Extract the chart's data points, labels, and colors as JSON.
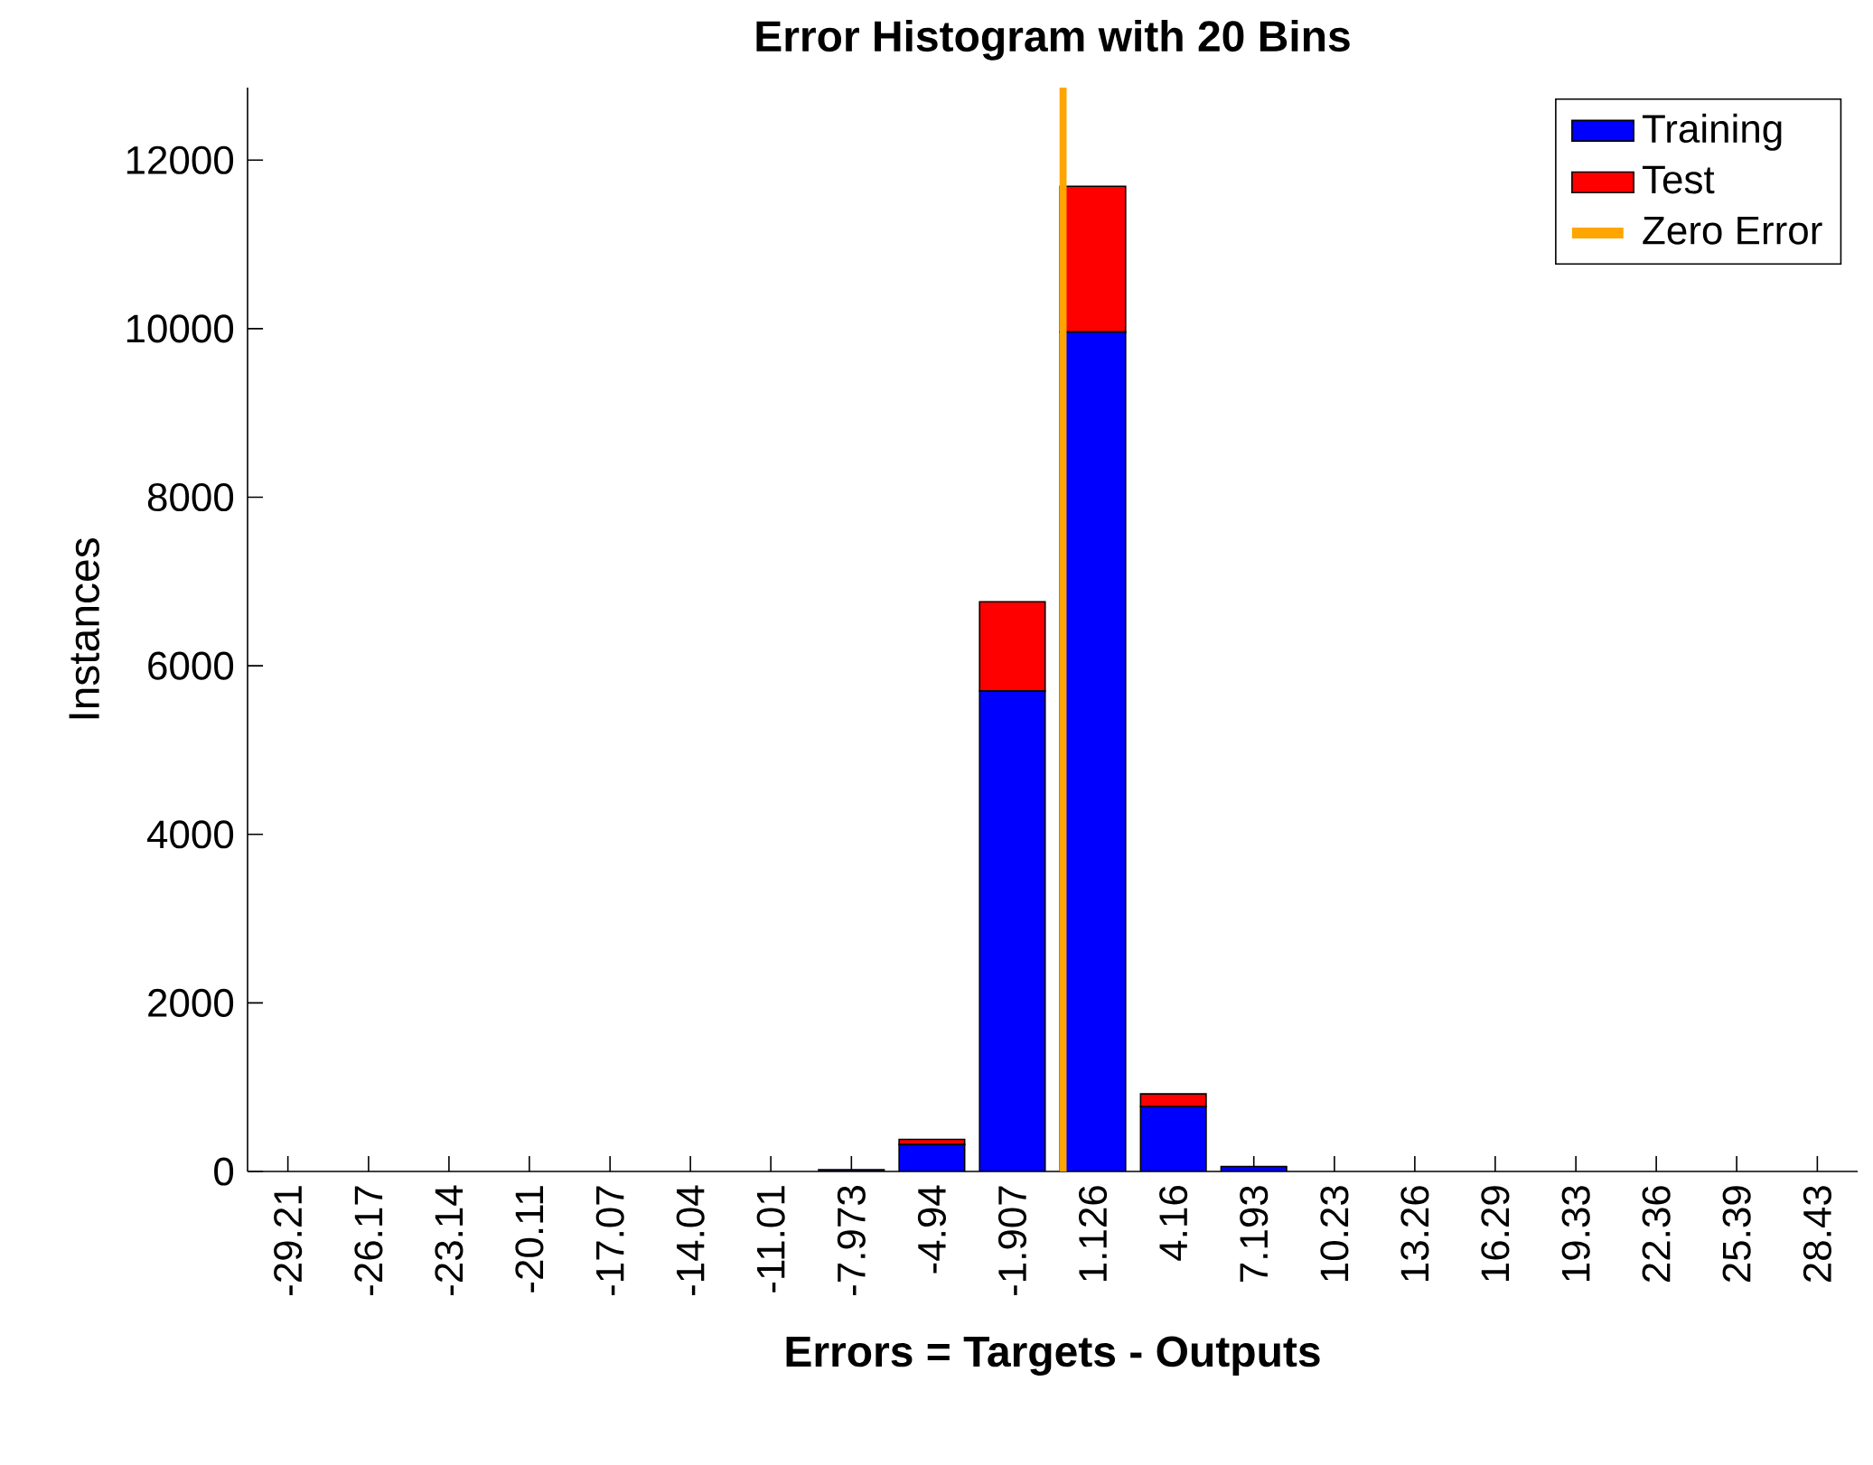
{
  "chart_data": {
    "type": "bar",
    "title": "Error Histogram with 20 Bins",
    "xlabel": "Errors = Targets - Outputs",
    "ylabel": "Instances",
    "x": [
      -29.21,
      -26.17,
      -23.14,
      -20.11,
      -17.07,
      -14.04,
      -11.01,
      -7.973,
      -4.94,
      -1.907,
      1.126,
      4.16,
      7.193,
      10.23,
      13.26,
      16.29,
      19.33,
      22.36,
      25.39,
      28.43
    ],
    "stacked": true,
    "series": [
      {
        "name": "Training",
        "color": "#0000ff",
        "values": [
          0,
          0,
          0,
          0,
          0,
          0,
          0,
          20,
          320,
          5700,
          9960,
          770,
          60,
          0,
          0,
          0,
          0,
          0,
          0,
          0
        ]
      },
      {
        "name": "Test",
        "color": "#ff0000",
        "values": [
          0,
          0,
          0,
          0,
          0,
          0,
          0,
          0,
          60,
          1060,
          1730,
          150,
          0,
          0,
          0,
          0,
          0,
          0,
          0,
          0
        ]
      },
      {
        "name": "Zero Error",
        "type": "line",
        "color": "#ffa500",
        "x": [
          0,
          0
        ],
        "values": [
          0,
          12860
        ]
      }
    ],
    "xlim": [
      -30.73,
      29.95
    ],
    "ylim": [
      0,
      12860
    ],
    "xticks": [
      -29.21,
      -26.17,
      -23.14,
      -20.11,
      -17.07,
      -14.04,
      -11.01,
      -7.973,
      -4.94,
      -1.907,
      1.126,
      4.16,
      7.193,
      10.23,
      13.26,
      16.29,
      19.33,
      22.36,
      25.39,
      28.43
    ],
    "yticks": [
      0,
      2000,
      4000,
      6000,
      8000,
      10000,
      12000
    ],
    "legend": "top right"
  }
}
